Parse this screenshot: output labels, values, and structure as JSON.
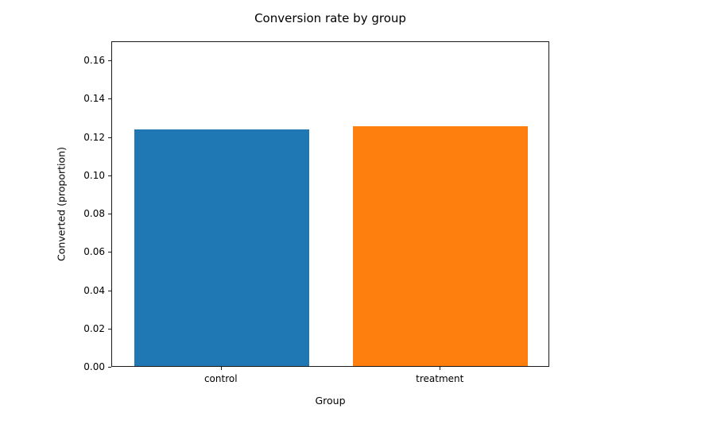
{
  "chart_data": {
    "type": "bar",
    "title": "Conversion rate by group",
    "xlabel": "Group",
    "ylabel": "Converted (proportion)",
    "categories": [
      "control",
      "treatment"
    ],
    "values": [
      0.1237,
      0.1253
    ],
    "bar_colors": [
      "#1f77b4",
      "#ff7f0e"
    ],
    "bar_width": 0.8,
    "xlim": [
      -0.5,
      1.5
    ],
    "ylim": [
      0,
      0.17
    ],
    "yticks": [
      0,
      0.02,
      0.04,
      0.06,
      0.08,
      0.1,
      0.12,
      0.14,
      0.16
    ],
    "ytick_labels": [
      "0.00",
      "0.02",
      "0.04",
      "0.06",
      "0.08",
      "0.10",
      "0.12",
      "0.14",
      "0.16"
    ],
    "grid": false,
    "legend": "none",
    "background_color": "#ffffff",
    "spine_color": "#1a1a1a",
    "text_color": "#000000"
  }
}
